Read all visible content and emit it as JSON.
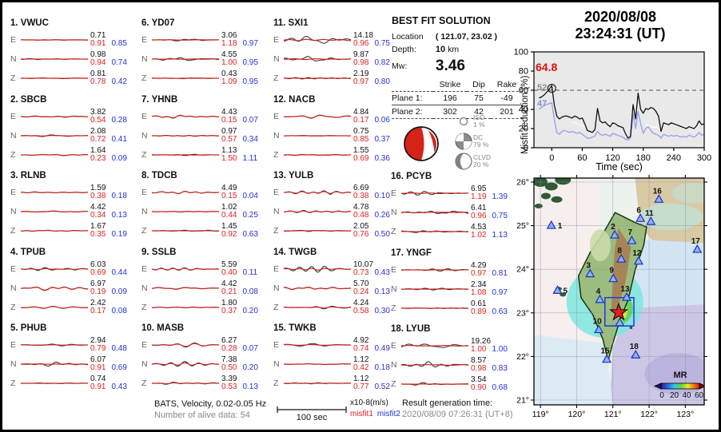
{
  "title": {
    "date": "2020/08/08",
    "time": "23:24:31  (UT)"
  },
  "best_fit": {
    "heading": "BEST FIT SOLUTION",
    "location_label": "Location",
    "location_value": "( 121.07,  23.02 )",
    "depth_label": "Depth:",
    "depth_value": "10",
    "depth_unit": "km",
    "mw_label": "Mw:",
    "mw_value": "3.46",
    "table": {
      "col_strike": "Strike",
      "col_dip": "Dip",
      "col_rake": "Rake",
      "plane1": {
        "label": "Plane 1:",
        "strike": "196",
        "dip": "75",
        "rake": "-49"
      },
      "plane2": {
        "label": "Plane 2:",
        "strike": "302",
        "dip": "42",
        "rake": "201"
      }
    },
    "decomposition": [
      {
        "name": "ISO",
        "percent": "1 %",
        "icon": "iso-icon"
      },
      {
        "name": "DC",
        "percent": "79 %",
        "icon": "dc-icon"
      },
      {
        "name": "CLVD",
        "percent": "20 %",
        "icon": "clvd-icon"
      }
    ]
  },
  "footer": {
    "line1": "BATS, Velocity, 0.02-0.05 Hz",
    "line2": "Number of alive data: 54",
    "timescale": "100 sec",
    "units": "x10-8(m/s)",
    "misfit1": "misfit1",
    "misfit2": "misfit2",
    "result_label": "Result generation time:",
    "result_value": "2020/08/09 07:26:31 (UT+8)"
  },
  "colors": {
    "misfit1": "#e02020",
    "misfit2": "#2431d8",
    "trace_data": "#2b2b2b",
    "trace_synth": "#c9241c",
    "beachball_red": "#d62318",
    "lavender_line": "#9aa3e8",
    "annotation_red": "#e01010",
    "annotation_gray": "#8a8a8a",
    "annotation_blue": "#8891e0"
  },
  "chart_data": [
    {
      "type": "table",
      "title": "Waveform fit per station (observed vs synthetic)",
      "columns": [
        "station",
        "channel",
        "amplitude (x10-8 m/s)",
        "misfit1",
        "misfit2"
      ],
      "stations": [
        {
          "num": 1,
          "code": "VWUC",
          "channels": [
            {
              "ch": "E",
              "amp": "0.71",
              "m1": "0.91",
              "m2": "0.85"
            },
            {
              "ch": "N",
              "amp": "0.98",
              "m1": "0.94",
              "m2": "0.74"
            },
            {
              "ch": "Z",
              "amp": "0.81",
              "m1": "0.78",
              "m2": "0.42"
            }
          ]
        },
        {
          "num": 2,
          "code": "SBCB",
          "channels": [
            {
              "ch": "E",
              "amp": "3.82",
              "m1": "0.54",
              "m2": "0.28"
            },
            {
              "ch": "N",
              "amp": "2.08",
              "m1": "0.72",
              "m2": "0.41"
            },
            {
              "ch": "Z",
              "amp": "1.64",
              "m1": "0.23",
              "m2": "0.09"
            }
          ]
        },
        {
          "num": 3,
          "code": "RLNB",
          "channels": [
            {
              "ch": "E",
              "amp": "1.59",
              "m1": "0.38",
              "m2": "0.18"
            },
            {
              "ch": "N",
              "amp": "4.42",
              "m1": "0.34",
              "m2": "0.13"
            },
            {
              "ch": "Z",
              "amp": "1.67",
              "m1": "0.35",
              "m2": "0.19"
            }
          ]
        },
        {
          "num": 4,
          "code": "TPUB",
          "channels": [
            {
              "ch": "E",
              "amp": "6.03",
              "m1": "0.69",
              "m2": "0.44"
            },
            {
              "ch": "N",
              "amp": "6.97",
              "m1": "0.19",
              "m2": "0.09"
            },
            {
              "ch": "Z",
              "amp": "2.42",
              "m1": "0.17",
              "m2": "0.08"
            }
          ]
        },
        {
          "num": 5,
          "code": "PHUB",
          "channels": [
            {
              "ch": "E",
              "amp": "2.94",
              "m1": "0.79",
              "m2": "0.48"
            },
            {
              "ch": "N",
              "amp": "6.07",
              "m1": "0.91",
              "m2": "0.69"
            },
            {
              "ch": "Z",
              "amp": "0.74",
              "m1": "0.91",
              "m2": "0.43"
            }
          ]
        },
        {
          "num": 6,
          "code": "YD07",
          "channels": [
            {
              "ch": "E",
              "amp": "3.06",
              "m1": "1.18",
              "m2": "0.97"
            },
            {
              "ch": "N",
              "amp": "4.55",
              "m1": "1.00",
              "m2": "0.95"
            },
            {
              "ch": "Z",
              "amp": "0.43",
              "m1": "1.09",
              "m2": "0.95"
            }
          ]
        },
        {
          "num": 7,
          "code": "YHNB",
          "channels": [
            {
              "ch": "E",
              "amp": "4.43",
              "m1": "0.15",
              "m2": "0.07"
            },
            {
              "ch": "N",
              "amp": "0.97",
              "m1": "0.57",
              "m2": "0.34"
            },
            {
              "ch": "Z",
              "amp": "1.13",
              "m1": "1.50",
              "m2": "1.11"
            }
          ]
        },
        {
          "num": 8,
          "code": "TDCB",
          "channels": [
            {
              "ch": "E",
              "amp": "4.49",
              "m1": "0.15",
              "m2": "0.04"
            },
            {
              "ch": "N",
              "amp": "1.02",
              "m1": "0.44",
              "m2": "0.25"
            },
            {
              "ch": "Z",
              "amp": "1.45",
              "m1": "0.92",
              "m2": "0.63"
            }
          ]
        },
        {
          "num": 9,
          "code": "SSLB",
          "channels": [
            {
              "ch": "E",
              "amp": "5.59",
              "m1": "0.40",
              "m2": "0.11"
            },
            {
              "ch": "N",
              "amp": "4.42",
              "m1": "0.21",
              "m2": "0.08"
            },
            {
              "ch": "Z",
              "amp": "1.80",
              "m1": "0.37",
              "m2": "0.20"
            }
          ]
        },
        {
          "num": 10,
          "code": "MASB",
          "channels": [
            {
              "ch": "E",
              "amp": "6.27",
              "m1": "0.28",
              "m2": "0.07"
            },
            {
              "ch": "N",
              "amp": "7.38",
              "m1": "0.50",
              "m2": "0.20"
            },
            {
              "ch": "Z",
              "amp": "3.39",
              "m1": "0.53",
              "m2": "0.13"
            }
          ]
        },
        {
          "num": 11,
          "code": "SXI1",
          "channels": [
            {
              "ch": "E",
              "amp": "14.18",
              "m1": "0.96",
              "m2": "0.75"
            },
            {
              "ch": "N",
              "amp": "9.87",
              "m1": "0.98",
              "m2": "0.82"
            },
            {
              "ch": "Z",
              "amp": "2.19",
              "m1": "0.97",
              "m2": "0.80"
            }
          ]
        },
        {
          "num": 12,
          "code": "NACB",
          "channels": [
            {
              "ch": "E",
              "amp": "4.84",
              "m1": "0.17",
              "m2": "0.06"
            },
            {
              "ch": "N",
              "amp": "0.75",
              "m1": "0.85",
              "m2": "0.37"
            },
            {
              "ch": "Z",
              "amp": "1.55",
              "m1": "0.69",
              "m2": "0.36"
            }
          ]
        },
        {
          "num": 13,
          "code": "YULB",
          "channels": [
            {
              "ch": "E",
              "amp": "6.69",
              "m1": "0.38",
              "m2": "0.10"
            },
            {
              "ch": "N",
              "amp": "4.78",
              "m1": "0.48",
              "m2": "0.26"
            },
            {
              "ch": "Z",
              "amp": "2.05",
              "m1": "0.76",
              "m2": "0.50"
            }
          ]
        },
        {
          "num": 14,
          "code": "TWGB",
          "channels": [
            {
              "ch": "E",
              "amp": "10.07",
              "m1": "0.73",
              "m2": "0.43"
            },
            {
              "ch": "N",
              "amp": "5.70",
              "m1": "0.24",
              "m2": "0.13"
            },
            {
              "ch": "Z",
              "amp": "4.24",
              "m1": "0.58",
              "m2": "0.30"
            }
          ]
        },
        {
          "num": 15,
          "code": "TWKB",
          "channels": [
            {
              "ch": "E",
              "amp": "4.92",
              "m1": "0.74",
              "m2": "0.49"
            },
            {
              "ch": "N",
              "amp": "1.12",
              "m1": "0.42",
              "m2": "0.18"
            },
            {
              "ch": "Z",
              "amp": "1.12",
              "m1": "0.77",
              "m2": "0.52"
            }
          ]
        },
        {
          "num": 16,
          "code": "PCYB",
          "channels": [
            {
              "ch": "E",
              "amp": "6.95",
              "m1": "1.19",
              "m2": "1.39"
            },
            {
              "ch": "N",
              "amp": "6.41",
              "m1": "0.96",
              "m2": "0.75"
            },
            {
              "ch": "Z",
              "amp": "4.53",
              "m1": "1.02",
              "m2": "1.13"
            }
          ]
        },
        {
          "num": 17,
          "code": "YNGF",
          "channels": [
            {
              "ch": "E",
              "amp": "4.29",
              "m1": "0.97",
              "m2": "0.81"
            },
            {
              "ch": "N",
              "amp": "2.34",
              "m1": "1.08",
              "m2": "0.97"
            },
            {
              "ch": "Z",
              "amp": "0.61",
              "m1": "0.89",
              "m2": "0.63"
            }
          ]
        },
        {
          "num": 18,
          "code": "LYUB",
          "channels": [
            {
              "ch": "E",
              "amp": "19.26",
              "m1": "1.00",
              "m2": "1.00"
            },
            {
              "ch": "N",
              "amp": "8.57",
              "m1": "0.98",
              "m2": "0.83"
            },
            {
              "ch": "Z",
              "amp": "3.54",
              "m1": "0.90",
              "m2": "0.68"
            }
          ]
        }
      ]
    },
    {
      "type": "line",
      "title": "Misfit reduction vs centroid time shift",
      "xlabel": "Time (sec)",
      "ylabel": "Misfit reduction (%)",
      "xlim": [
        -35,
        300
      ],
      "ylim": [
        0,
        100
      ],
      "x_ticks": [
        0,
        60,
        120,
        180,
        240,
        300
      ],
      "y_ticks": [
        0,
        20,
        40,
        60,
        80,
        100
      ],
      "hline_dashed": 60,
      "marker": {
        "x": 0,
        "y": 62
      },
      "labels": {
        "best": "64.8",
        "start": "52",
        "second": "47"
      },
      "series": [
        {
          "name": "misfit-reduction-black",
          "x": [
            -25,
            -20,
            -15,
            -10,
            -5,
            0,
            5,
            10,
            15,
            20,
            25,
            30,
            35,
            40,
            45,
            50,
            55,
            60,
            65,
            70,
            75,
            80,
            85,
            90,
            95,
            100,
            105,
            110,
            115,
            120,
            125,
            130,
            135,
            140,
            145,
            150,
            155,
            160,
            165,
            170,
            175,
            180,
            185,
            190,
            195,
            200,
            205,
            210,
            215,
            220,
            225,
            230,
            235,
            240,
            245,
            250,
            255,
            260,
            265,
            270,
            275,
            280,
            285,
            290,
            295,
            300
          ],
          "y": [
            52,
            53,
            55,
            58,
            61,
            64.8,
            45,
            33,
            30,
            32,
            33,
            33,
            32,
            31,
            33,
            32,
            30,
            31,
            25,
            18,
            17,
            16,
            19,
            41,
            28,
            26,
            27,
            24,
            22,
            26,
            25,
            23,
            22,
            21,
            15,
            10,
            12,
            45,
            30,
            57,
            40,
            36,
            41,
            40,
            42,
            41,
            38,
            33,
            17,
            26,
            25,
            24,
            26,
            25,
            24,
            23,
            22,
            21,
            20,
            22,
            21,
            20,
            23,
            28,
            24,
            25
          ]
        },
        {
          "name": "misfit-reduction-lavender",
          "x": [
            -25,
            -20,
            -15,
            -10,
            -5,
            0,
            5,
            10,
            15,
            20,
            25,
            30,
            35,
            40,
            45,
            50,
            55,
            60,
            65,
            70,
            75,
            80,
            85,
            90,
            95,
            100,
            105,
            110,
            115,
            120,
            125,
            130,
            135,
            140,
            145,
            150,
            155,
            160,
            165,
            170,
            175,
            180,
            185,
            190,
            195,
            200,
            205,
            210,
            215,
            220,
            225,
            230,
            235,
            240,
            245,
            250,
            255,
            260,
            265,
            270,
            275,
            280,
            285,
            290,
            295,
            300
          ],
          "y": [
            40,
            42,
            44,
            45,
            46,
            47,
            30,
            16,
            14,
            17,
            18,
            17,
            16,
            17,
            16,
            15,
            16,
            14,
            12,
            10,
            10,
            11,
            12,
            17,
            14,
            13,
            14,
            13,
            12,
            15,
            14,
            13,
            12,
            11,
            9,
            8,
            10,
            35,
            20,
            38,
            25,
            15,
            20,
            22,
            18,
            15,
            14,
            13,
            10,
            14,
            13,
            12,
            13,
            12,
            13,
            12,
            11,
            12,
            11,
            13,
            12,
            11,
            13,
            16,
            13,
            14
          ]
        },
        {
          "name": "misfit-reduction-white-a",
          "x": [
            40,
            45,
            50,
            55,
            60,
            65
          ],
          "y": [
            27,
            26,
            25,
            24,
            23,
            22
          ]
        },
        {
          "name": "misfit-reduction-white-b",
          "x": [
            185,
            190,
            195,
            200,
            205,
            210,
            215
          ],
          "y": [
            24,
            23,
            22,
            21,
            22,
            20,
            19
          ]
        }
      ]
    },
    {
      "type": "scatter",
      "title": "Station map (Taiwan)",
      "lon_ticks": [
        119,
        120,
        121,
        122,
        123
      ],
      "lat_ticks": [
        21,
        22,
        23,
        24,
        25,
        26
      ],
      "stations": [
        {
          "id": 1,
          "lon": 119.3,
          "lat": 25.01
        },
        {
          "id": 2,
          "lon": 121.05,
          "lat": 24.79
        },
        {
          "id": 3,
          "lon": 120.37,
          "lat": 23.9
        },
        {
          "id": 4,
          "lon": 120.64,
          "lat": 23.31
        },
        {
          "id": 5,
          "lon": 119.47,
          "lat": 23.52
        },
        {
          "id": 6,
          "lon": 121.76,
          "lat": 25.17
        },
        {
          "id": 7,
          "lon": 121.52,
          "lat": 24.66
        },
        {
          "id": 8,
          "lon": 121.23,
          "lat": 24.24
        },
        {
          "id": 9,
          "lon": 121.01,
          "lat": 23.79
        },
        {
          "id": 10,
          "lon": 120.61,
          "lat": 22.62
        },
        {
          "id": 11,
          "lon": 122.05,
          "lat": 25.1
        },
        {
          "id": 12,
          "lon": 121.71,
          "lat": 24.19
        },
        {
          "id": 13,
          "lon": 121.38,
          "lat": 23.36
        },
        {
          "id": 14,
          "lon": 121.19,
          "lat": 22.78
        },
        {
          "id": 15,
          "lon": 120.83,
          "lat": 21.94
        },
        {
          "id": 16,
          "lon": 122.27,
          "lat": 25.61
        },
        {
          "id": 17,
          "lon": 123.33,
          "lat": 24.46
        },
        {
          "id": 18,
          "lon": 121.63,
          "lat": 22.04
        }
      ],
      "epicenter": {
        "lon": 121.16,
        "lat": 23.01
      },
      "search_box": {
        "lon": [
          120.78,
          121.58
        ],
        "lat": [
          22.7,
          23.35
        ]
      },
      "colorbar": {
        "label": "MR",
        "ticks": [
          0,
          20,
          40,
          60
        ]
      }
    }
  ]
}
